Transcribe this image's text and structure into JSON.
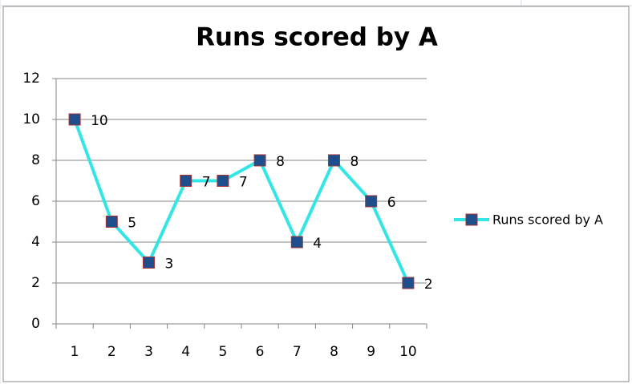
{
  "chart_data": {
    "type": "line",
    "title": "Runs scored by A",
    "categories": [
      "1",
      "2",
      "3",
      "4",
      "5",
      "6",
      "7",
      "8",
      "9",
      "10"
    ],
    "series": [
      {
        "name": "Runs scored by A",
        "color": "#33e5e5",
        "marker_color": "#1f4e8c",
        "values": [
          10,
          5,
          3,
          7,
          7,
          8,
          4,
          8,
          6,
          2
        ]
      }
    ],
    "ylim": [
      0,
      12
    ],
    "yticks": [
      0,
      2,
      4,
      6,
      8,
      10,
      12
    ],
    "grid": true,
    "legend": "right",
    "data_labels": true
  }
}
